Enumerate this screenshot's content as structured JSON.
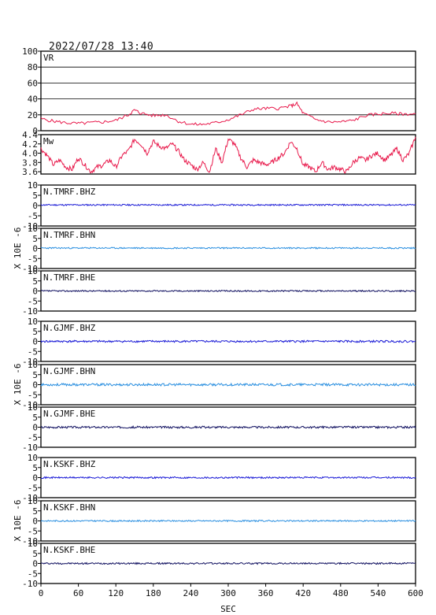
{
  "header": {
    "timestamp": "2022/07/28 13:40"
  },
  "colors": {
    "vr_line": "#e8194b",
    "mw_line": "#e8194b",
    "bhz_line": "#1a1ad6",
    "bhn_line": "#2a8fe0",
    "bhe_line": "#101060",
    "frame": "#000000"
  },
  "chart_data": [
    {
      "type": "line",
      "label": "VR",
      "ylim": [
        0,
        100
      ],
      "yticks": [
        "100",
        "80",
        "60",
        "40",
        "20",
        "0"
      ],
      "grid": true,
      "x": [
        0,
        20,
        40,
        60,
        80,
        100,
        120,
        140,
        150,
        160,
        180,
        200,
        220,
        240,
        260,
        280,
        300,
        320,
        340,
        360,
        380,
        400,
        410,
        420,
        440,
        460,
        480,
        500,
        520,
        540,
        560,
        580,
        600
      ],
      "values": [
        15,
        12,
        10,
        9,
        10,
        11,
        13,
        20,
        26,
        22,
        19,
        20,
        12,
        8,
        8,
        10,
        14,
        20,
        27,
        28,
        28,
        31,
        34,
        22,
        14,
        11,
        11,
        13,
        19,
        21,
        22,
        21,
        21
      ]
    },
    {
      "type": "line",
      "label": "Mw",
      "ylim": [
        3.55,
        4.4
      ],
      "yticks": [
        "4.4",
        "4.2",
        "4.0",
        "3.8",
        "3.6"
      ],
      "grid": false,
      "x": [
        0,
        10,
        20,
        30,
        40,
        50,
        60,
        70,
        80,
        90,
        100,
        110,
        120,
        130,
        140,
        150,
        160,
        170,
        180,
        190,
        200,
        210,
        220,
        230,
        240,
        250,
        260,
        270,
        280,
        290,
        300,
        310,
        320,
        330,
        340,
        350,
        360,
        370,
        380,
        390,
        400,
        410,
        420,
        430,
        440,
        450,
        460,
        470,
        480,
        490,
        500,
        510,
        520,
        530,
        540,
        550,
        560,
        570,
        580,
        590,
        600
      ],
      "values": [
        4.1,
        3.95,
        3.75,
        3.85,
        3.7,
        3.65,
        3.9,
        3.75,
        3.6,
        3.7,
        3.75,
        3.85,
        3.7,
        3.95,
        4.05,
        4.3,
        4.2,
        4.0,
        4.25,
        4.15,
        4.1,
        4.2,
        4.05,
        3.85,
        3.75,
        3.65,
        3.8,
        3.6,
        4.1,
        3.8,
        4.3,
        4.2,
        3.9,
        3.7,
        3.85,
        3.8,
        3.75,
        3.8,
        3.9,
        4.0,
        4.25,
        4.1,
        3.75,
        3.7,
        3.6,
        3.8,
        3.65,
        3.7,
        3.65,
        3.6,
        3.8,
        3.9,
        3.85,
        3.95,
        4.0,
        3.85,
        3.95,
        4.1,
        3.85,
        4.0,
        4.35
      ]
    },
    {
      "type": "line",
      "label": "N.TMRF.BHZ",
      "ylim": [
        -10,
        10
      ],
      "yticks": [
        "10",
        "5",
        "0",
        "-5",
        "-10"
      ],
      "seed": 11,
      "amp": 0.35,
      "offset": 0.3,
      "color_key": "bhz_line"
    },
    {
      "type": "line",
      "label": "N.TMRF.BHN",
      "ylim": [
        -10,
        10
      ],
      "yticks": [
        "10",
        "5",
        "0",
        "-5",
        "-10"
      ],
      "seed": 23,
      "amp": 0.35,
      "offset": 0.2,
      "color_key": "bhn_line"
    },
    {
      "type": "line",
      "label": "N.TMRF.BHE",
      "ylim": [
        -10,
        10
      ],
      "yticks": [
        "10",
        "5",
        "0",
        "-5",
        "-10"
      ],
      "seed": 37,
      "amp": 0.35,
      "offset": 0.0,
      "color_key": "bhe_line"
    },
    {
      "type": "line",
      "label": "N.GJMF.BHZ",
      "ylim": [
        -10,
        10
      ],
      "yticks": [
        "10",
        "5",
        "0",
        "-5",
        "-10"
      ],
      "seed": 41,
      "amp": 0.5,
      "offset": 0.0,
      "color_key": "bhz_line"
    },
    {
      "type": "line",
      "label": "N.GJMF.BHN",
      "ylim": [
        -10,
        10
      ],
      "yticks": [
        "10",
        "5",
        "0",
        "-5",
        "-10"
      ],
      "seed": 53,
      "amp": 0.6,
      "offset": 0.0,
      "color_key": "bhn_line"
    },
    {
      "type": "line",
      "label": "N.GJMF.BHE",
      "ylim": [
        -10,
        10
      ],
      "yticks": [
        "10",
        "5",
        "0",
        "-5",
        "-10"
      ],
      "seed": 67,
      "amp": 0.5,
      "offset": 0.0,
      "color_key": "bhe_line"
    },
    {
      "type": "line",
      "label": "N.KSKF.BHZ",
      "ylim": [
        -10,
        10
      ],
      "yticks": [
        "10",
        "5",
        "0",
        "-5",
        "-10"
      ],
      "seed": 71,
      "amp": 0.4,
      "offset": 0.0,
      "color_key": "bhz_line"
    },
    {
      "type": "line",
      "label": "N.KSKF.BHN",
      "ylim": [
        -10,
        10
      ],
      "yticks": [
        "10",
        "5",
        "0",
        "-5",
        "-10"
      ],
      "seed": 83,
      "amp": 0.35,
      "offset": 0.0,
      "color_key": "bhn_line"
    },
    {
      "type": "line",
      "label": "N.KSKF.BHE",
      "ylim": [
        -10,
        10
      ],
      "yticks": [
        "10",
        "5",
        "0",
        "-5",
        "-10"
      ],
      "seed": 97,
      "amp": 0.4,
      "offset": 0.0,
      "color_key": "bhe_line"
    }
  ],
  "axes": {
    "x_ticks": [
      "0",
      "60",
      "120",
      "180",
      "240",
      "300",
      "360",
      "420",
      "480",
      "540",
      "600"
    ],
    "xlim": [
      0,
      600
    ],
    "xlabel": "SEC",
    "ylabel": "X 10E -6"
  }
}
